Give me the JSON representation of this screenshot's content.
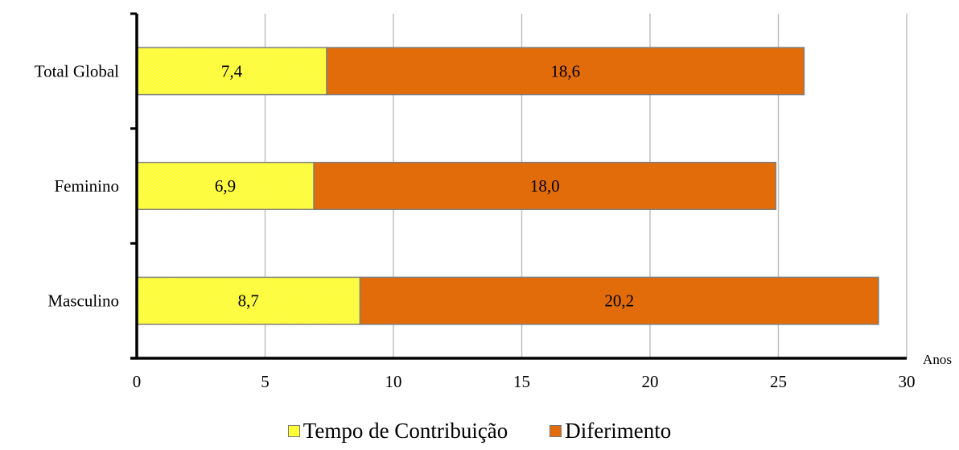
{
  "chart_data": {
    "type": "bar",
    "orientation": "horizontal",
    "stacked": true,
    "categories": [
      "Total Global",
      "Feminino",
      "Masculino"
    ],
    "series": [
      {
        "name": "Tempo de Contribuição",
        "values": [
          7.4,
          6.9,
          8.7
        ],
        "labels": [
          "7,4",
          "6,9",
          "8,7"
        ],
        "color": "#ffff33"
      },
      {
        "name": "Diferimento",
        "values": [
          18.6,
          18.0,
          20.2
        ],
        "labels": [
          "18,6",
          "18,0",
          "20,2"
        ],
        "color": "#e36c0a"
      }
    ],
    "xunit": "Anos",
    "xlim": [
      0,
      30
    ],
    "xticks": [
      0,
      5,
      10,
      15,
      20,
      25,
      30
    ],
    "grid": true,
    "legend_position": "bottom"
  }
}
